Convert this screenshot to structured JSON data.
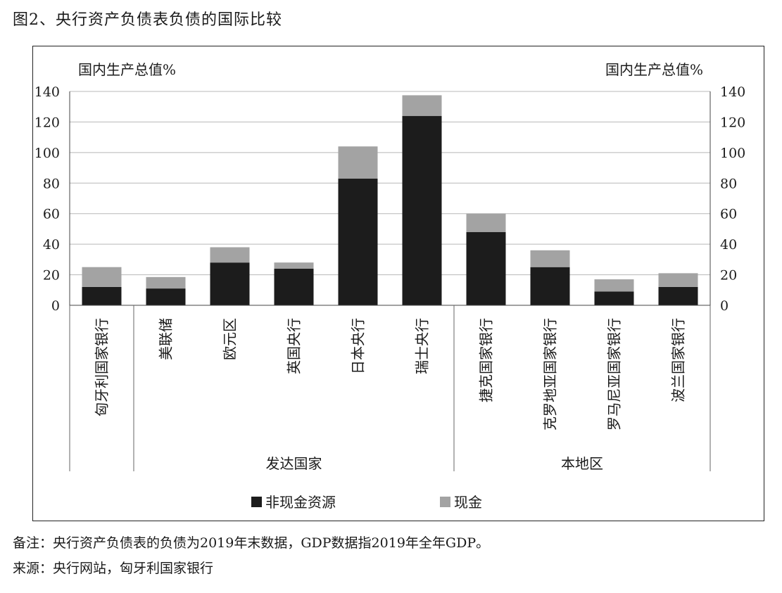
{
  "title": "图2、央行资产负债表负债的国际比较",
  "note": "备注：央行资产负债表的负债为2019年末数据，GDP数据指2019年全年GDP。",
  "source": "来源：央行网站，匈牙利国家银行",
  "chart_data": {
    "type": "bar",
    "stacked": true,
    "ylabel_left": "国内生产总值%",
    "ylabel_right": "国内生产总值%",
    "ylim": [
      0,
      140
    ],
    "yticks": [
      0,
      20,
      40,
      60,
      80,
      100,
      120,
      140
    ],
    "grid": true,
    "legend_position": "bottom-center",
    "categories": [
      "匈牙利国家银行",
      "美联储",
      "欧元区",
      "英国央行",
      "日本央行",
      "瑞士央行",
      "捷克国家银行",
      "克罗地亚国家银行",
      "罗马尼亚国家银行",
      "波兰国家银行"
    ],
    "groups": [
      {
        "label": "发达国家",
        "start": 1,
        "end": 5
      },
      {
        "label": "本地区",
        "start": 6,
        "end": 9
      }
    ],
    "series": [
      {
        "name": "非现金资源",
        "color": "#1c1c1c",
        "values": [
          12,
          11,
          28,
          24,
          83,
          124,
          48,
          25,
          9,
          12
        ]
      },
      {
        "name": "现金",
        "color": "#a3a3a3",
        "values": [
          13,
          7.5,
          10,
          4,
          21,
          13.5,
          12,
          11,
          8,
          9
        ]
      }
    ]
  }
}
